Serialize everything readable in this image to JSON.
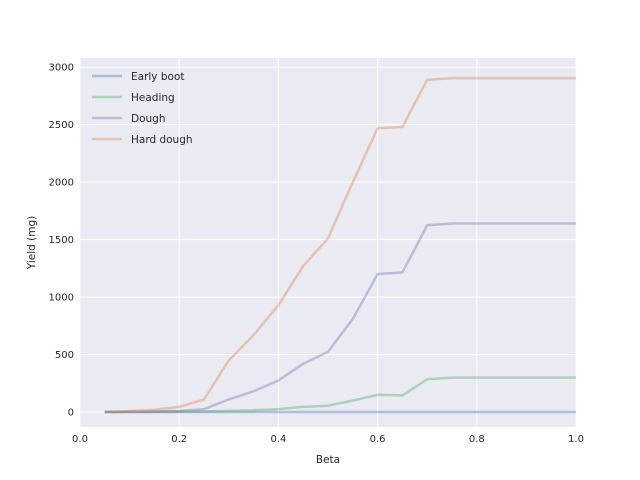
{
  "chart_data": {
    "type": "line",
    "title": "",
    "xlabel": "Beta",
    "ylabel": "Yield (mg)",
    "xlim": [
      0.0,
      1.0
    ],
    "ylim": [
      -130,
      3080
    ],
    "xticks": [
      0.0,
      0.2,
      0.4,
      0.6,
      0.8,
      1.0
    ],
    "xtick_labels": [
      "0.0",
      "0.2",
      "0.4",
      "0.6",
      "0.8",
      "1.0"
    ],
    "yticks": [
      0,
      500,
      1000,
      1500,
      2000,
      2500,
      3000
    ],
    "ytick_labels": [
      "0",
      "500",
      "1000",
      "1500",
      "2000",
      "2500",
      "3000"
    ],
    "grid": true,
    "legend_position": "top-left",
    "background": "#eaeaf2",
    "x": [
      0.05,
      0.1,
      0.15,
      0.2,
      0.25,
      0.3,
      0.35,
      0.4,
      0.45,
      0.5,
      0.55,
      0.6,
      0.65,
      0.7,
      0.75,
      0.8,
      0.85,
      0.9,
      0.95,
      1.0
    ],
    "series": [
      {
        "name": "Early boot",
        "color": "#4c72b0",
        "values": [
          0,
          0,
          0,
          0,
          0,
          0,
          0,
          0,
          0,
          0,
          0,
          0,
          0,
          0,
          0,
          0,
          0,
          0,
          0,
          0
        ]
      },
      {
        "name": "Heading",
        "color": "#55a868",
        "values": [
          0,
          1,
          2,
          4,
          6,
          10,
          15,
          25,
          45,
          55,
          100,
          150,
          145,
          285,
          300,
          300,
          300,
          300,
          300,
          300
        ]
      },
      {
        "name": "Dough",
        "color": "#8172b2",
        "values": [
          0,
          3,
          6,
          10,
          25,
          110,
          180,
          275,
          420,
          525,
          810,
          1200,
          1215,
          1625,
          1640,
          1640,
          1640,
          1640,
          1640,
          1640
        ]
      },
      {
        "name": "Hard dough",
        "color": "#dd8452",
        "values": [
          0,
          8,
          20,
          45,
          110,
          450,
          670,
          930,
          1270,
          1510,
          2000,
          2470,
          2480,
          2890,
          2905,
          2905,
          2905,
          2905,
          2905,
          2905
        ]
      }
    ]
  }
}
